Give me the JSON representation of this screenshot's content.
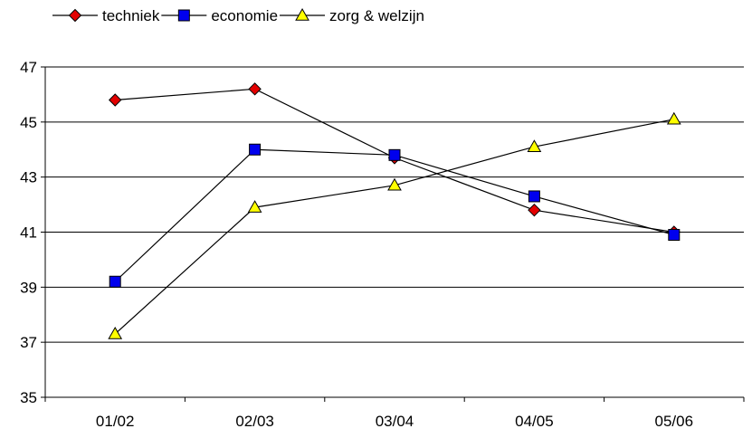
{
  "chart_data": {
    "type": "line",
    "title": "",
    "xlabel": "",
    "ylabel": "",
    "categories": [
      "01/02",
      "02/03",
      "03/04",
      "04/05",
      "05/06"
    ],
    "ylim": [
      35,
      47
    ],
    "yticks": [
      35,
      37,
      39,
      41,
      43,
      45,
      47
    ],
    "grid": "horizontal",
    "legend_position": "top-left",
    "series": [
      {
        "name": "techniek",
        "marker": "diamond",
        "color": "#e30000",
        "values": [
          45.8,
          46.2,
          43.7,
          41.8,
          41.0
        ]
      },
      {
        "name": "economie",
        "marker": "square",
        "color": "#0000ee",
        "values": [
          39.2,
          44.0,
          43.8,
          42.3,
          40.9
        ]
      },
      {
        "name": "zorg & welzijn",
        "marker": "triangle",
        "color": "#ffff00",
        "values": [
          37.3,
          41.9,
          42.7,
          44.1,
          45.1
        ]
      }
    ]
  }
}
